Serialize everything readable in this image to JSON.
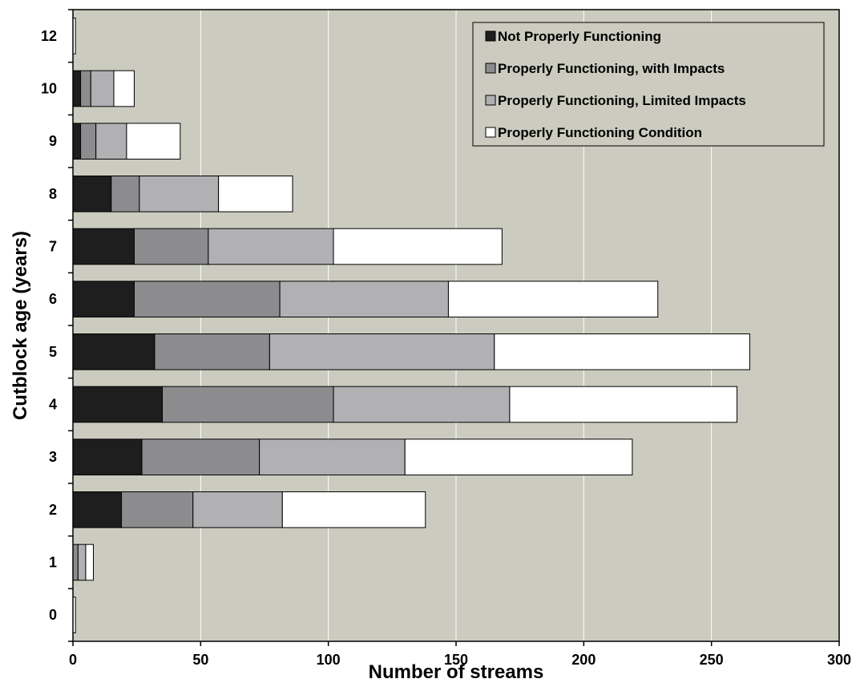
{
  "chart_data": {
    "type": "bar",
    "orientation": "horizontal",
    "stacked": true,
    "title": "",
    "xlabel": "Number of streams",
    "ylabel": "Cutblock age (years)",
    "xlim": [
      0,
      300
    ],
    "xticks": [
      0,
      50,
      100,
      150,
      200,
      250,
      300
    ],
    "categories": [
      "0",
      "1",
      "2",
      "3",
      "4",
      "5",
      "6",
      "7",
      "8",
      "9",
      "10",
      "12"
    ],
    "grid": "vertical",
    "legend_position": "top-right",
    "background_color": "#cbcbbf",
    "series": [
      {
        "name": "Not Properly Functioning",
        "color": "#1e1e1e",
        "values": [
          0,
          0,
          19,
          27,
          35,
          32,
          24,
          24,
          15,
          3,
          3,
          0
        ]
      },
      {
        "name": "Properly Functioning, with Impacts",
        "color": "#8c8c8e",
        "values": [
          0,
          2,
          28,
          46,
          67,
          45,
          57,
          29,
          11,
          6,
          4,
          0
        ]
      },
      {
        "name": "Properly Functioning, Limited Impacts",
        "color": "#b1b1b3",
        "values": [
          0,
          3,
          35,
          57,
          69,
          88,
          66,
          49,
          31,
          12,
          9,
          0
        ]
      },
      {
        "name": "Properly Functioning Condition",
        "color": "#ffffff",
        "values": [
          1,
          3,
          56,
          89,
          89,
          100,
          82,
          66,
          29,
          21,
          8,
          1
        ]
      }
    ]
  }
}
